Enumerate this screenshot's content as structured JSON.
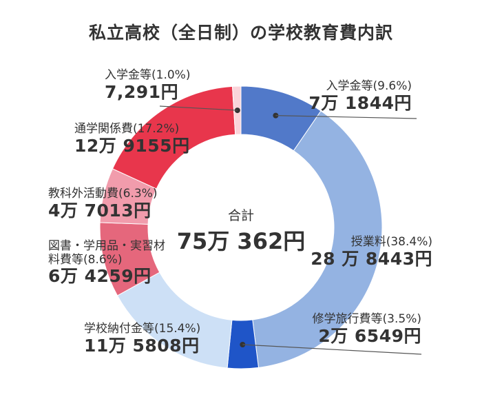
{
  "chart_data": {
    "type": "pie",
    "title": "私立高校（全日制）の学校教育費内訳",
    "center_label": "合計",
    "center_value": "75万 362円",
    "total": 750362,
    "categories": [
      "入学金等",
      "授業料",
      "修学旅行費等",
      "学校納付金等",
      "図書・学用品・実習材料費等",
      "教科外活動費",
      "通学関係費",
      "入学金等"
    ],
    "percent_labels": [
      "(9.6%)",
      "(38.4%)",
      "(3.5%)",
      "(15.4%)",
      "(8.6%)",
      "(6.3%)",
      "(17.2%)",
      "(1.0%)"
    ],
    "values": [
      71844,
      288443,
      26549,
      115808,
      64259,
      47013,
      129155,
      7291
    ],
    "amount_labels": [
      "7万 1844円",
      "28 万 8443円",
      "2万 6549円",
      "11万 5808円",
      "6万 4259円",
      "4万 7013円",
      "12万 9155円",
      "7,291円"
    ],
    "colors": [
      "#5179c9",
      "#94b3e2",
      "#1f55c8",
      "#cde0f6",
      "#e5677c",
      "#f19cac",
      "#e8364c",
      "#fad4da"
    ]
  }
}
